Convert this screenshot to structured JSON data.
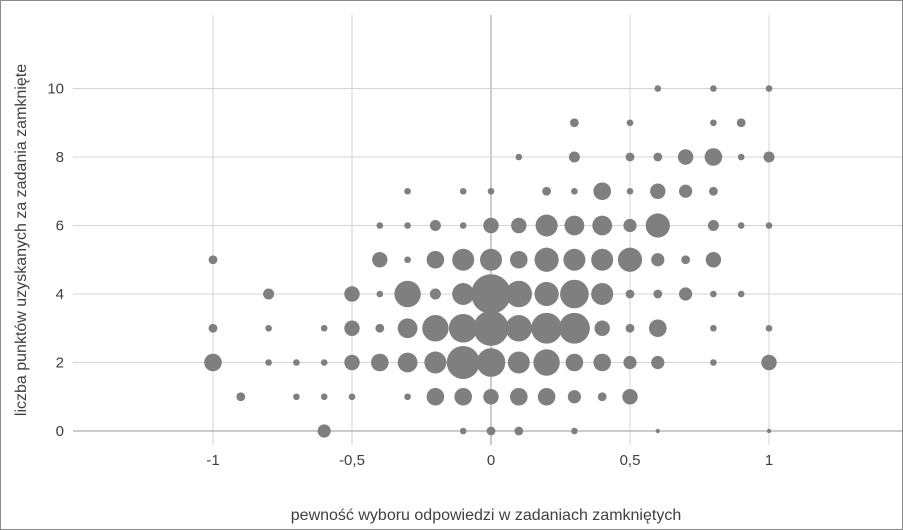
{
  "chart_data": {
    "type": "scatter",
    "title": "",
    "xlabel": "pewność wyboru odpowiedzi w zadaniach zamkniętych",
    "ylabel": "liczba punktów uzyskanych za zadania zamknięte",
    "xlim": [
      -1.5,
      1.5
    ],
    "ylim": [
      -0.4,
      12
    ],
    "x_ticks": [
      {
        "value": -1,
        "label": "-1"
      },
      {
        "value": -0.5,
        "label": "-0,5"
      },
      {
        "value": 0,
        "label": "0"
      },
      {
        "value": 0.5,
        "label": "0,5"
      },
      {
        "value": 1,
        "label": "1"
      }
    ],
    "y_ticks": [
      {
        "value": 0,
        "label": "0"
      },
      {
        "value": 2,
        "label": "2"
      },
      {
        "value": 4,
        "label": "4"
      },
      {
        "value": 6,
        "label": "6"
      },
      {
        "value": 8,
        "label": "8"
      },
      {
        "value": 10,
        "label": "10"
      }
    ],
    "grid": true,
    "marker_color": "#7f7f7f",
    "point_fields": [
      "x",
      "y",
      "relative_size"
    ],
    "points": [
      [
        -0.6,
        0,
        3
      ],
      [
        -0.1,
        0,
        1.5
      ],
      [
        0,
        0,
        2
      ],
      [
        0.1,
        0,
        2
      ],
      [
        0.3,
        0,
        1.5
      ],
      [
        0.6,
        0,
        1
      ],
      [
        1,
        0,
        1
      ],
      [
        -0.9,
        1,
        2
      ],
      [
        -0.7,
        1,
        1.5
      ],
      [
        -0.6,
        1,
        1.5
      ],
      [
        -0.5,
        1,
        1.5
      ],
      [
        -0.3,
        1,
        1.5
      ],
      [
        -0.2,
        1,
        4
      ],
      [
        -0.1,
        1,
        4
      ],
      [
        0,
        1,
        3.5
      ],
      [
        0.1,
        1,
        4
      ],
      [
        0.2,
        1,
        4
      ],
      [
        0.3,
        1,
        3
      ],
      [
        0.4,
        1,
        2
      ],
      [
        0.5,
        1,
        3.5
      ],
      [
        -1,
        2,
        4
      ],
      [
        -0.8,
        2,
        1.5
      ],
      [
        -0.7,
        2,
        1.5
      ],
      [
        -0.6,
        2,
        1.5
      ],
      [
        -0.5,
        2,
        3.5
      ],
      [
        -0.4,
        2,
        4
      ],
      [
        -0.3,
        2,
        4.5
      ],
      [
        -0.2,
        2,
        5
      ],
      [
        -0.1,
        2,
        7.5
      ],
      [
        0,
        2,
        6.5
      ],
      [
        0.1,
        2,
        5
      ],
      [
        0.2,
        2,
        6
      ],
      [
        0.3,
        2,
        4
      ],
      [
        0.4,
        2,
        4
      ],
      [
        0.5,
        2,
        3
      ],
      [
        0.6,
        2,
        3
      ],
      [
        0.8,
        2,
        1.5
      ],
      [
        1,
        2,
        3.5
      ],
      [
        -1,
        3,
        2
      ],
      [
        -0.8,
        3,
        1.5
      ],
      [
        -0.6,
        3,
        1.5
      ],
      [
        -0.5,
        3,
        3.5
      ],
      [
        -0.4,
        3,
        2
      ],
      [
        -0.3,
        3,
        4.5
      ],
      [
        -0.2,
        3,
        6
      ],
      [
        -0.1,
        3,
        6.5
      ],
      [
        0,
        3,
        8
      ],
      [
        0.1,
        3,
        6
      ],
      [
        0.2,
        3,
        7
      ],
      [
        0.3,
        3,
        7
      ],
      [
        0.4,
        3,
        3.5
      ],
      [
        0.5,
        3,
        2
      ],
      [
        0.6,
        3,
        4
      ],
      [
        0.8,
        3,
        1.5
      ],
      [
        1,
        3,
        1.5
      ],
      [
        -0.8,
        4,
        2.5
      ],
      [
        -0.5,
        4,
        3.5
      ],
      [
        -0.4,
        4,
        1.5
      ],
      [
        -0.3,
        4,
        6
      ],
      [
        -0.2,
        4,
        2.5
      ],
      [
        -0.1,
        4,
        5
      ],
      [
        0,
        4,
        9
      ],
      [
        0.1,
        4,
        6
      ],
      [
        0.2,
        4,
        5.5
      ],
      [
        0.3,
        4,
        6.5
      ],
      [
        0.4,
        4,
        5
      ],
      [
        0.5,
        4,
        2
      ],
      [
        0.6,
        4,
        2
      ],
      [
        0.7,
        4,
        3
      ],
      [
        0.8,
        4,
        1.5
      ],
      [
        0.9,
        4,
        1.5
      ],
      [
        -1,
        5,
        2
      ],
      [
        -0.4,
        5,
        3.5
      ],
      [
        -0.3,
        5,
        1.5
      ],
      [
        -0.2,
        5,
        4
      ],
      [
        -0.1,
        5,
        5
      ],
      [
        0,
        5,
        5
      ],
      [
        0.1,
        5,
        4
      ],
      [
        0.2,
        5,
        5.5
      ],
      [
        0.3,
        5,
        5
      ],
      [
        0.4,
        5,
        5
      ],
      [
        0.5,
        5,
        5.5
      ],
      [
        0.6,
        5,
        3
      ],
      [
        0.7,
        5,
        2
      ],
      [
        0.8,
        5,
        3.5
      ],
      [
        -0.4,
        6,
        1.5
      ],
      [
        -0.3,
        6,
        1.5
      ],
      [
        -0.2,
        6,
        2.5
      ],
      [
        -0.1,
        6,
        1.5
      ],
      [
        0,
        6,
        3.5
      ],
      [
        0.1,
        6,
        3.5
      ],
      [
        0.2,
        6,
        5
      ],
      [
        0.3,
        6,
        4.5
      ],
      [
        0.4,
        6,
        4.5
      ],
      [
        0.5,
        6,
        3
      ],
      [
        0.6,
        6,
        5.5
      ],
      [
        0.8,
        6,
        2.5
      ],
      [
        0.9,
        6,
        1.5
      ],
      [
        1,
        6,
        1.5
      ],
      [
        -0.3,
        7,
        1.5
      ],
      [
        -0.1,
        7,
        1.5
      ],
      [
        0,
        7,
        1.5
      ],
      [
        0.2,
        7,
        2
      ],
      [
        0.3,
        7,
        1.5
      ],
      [
        0.4,
        7,
        4
      ],
      [
        0.5,
        7,
        1.5
      ],
      [
        0.6,
        7,
        3.5
      ],
      [
        0.7,
        7,
        3
      ],
      [
        0.8,
        7,
        2
      ],
      [
        0.1,
        8,
        1.5
      ],
      [
        0.3,
        8,
        2.5
      ],
      [
        0.5,
        8,
        2
      ],
      [
        0.6,
        8,
        2
      ],
      [
        0.7,
        8,
        3.5
      ],
      [
        0.8,
        8,
        4
      ],
      [
        0.9,
        8,
        1.5
      ],
      [
        1,
        8,
        2.5
      ],
      [
        0.3,
        9,
        2
      ],
      [
        0.5,
        9,
        1.5
      ],
      [
        0.8,
        9,
        1.5
      ],
      [
        0.9,
        9,
        2
      ],
      [
        0.6,
        10,
        1.5
      ],
      [
        0.8,
        10,
        1.5
      ],
      [
        1,
        10,
        1.5
      ]
    ]
  }
}
